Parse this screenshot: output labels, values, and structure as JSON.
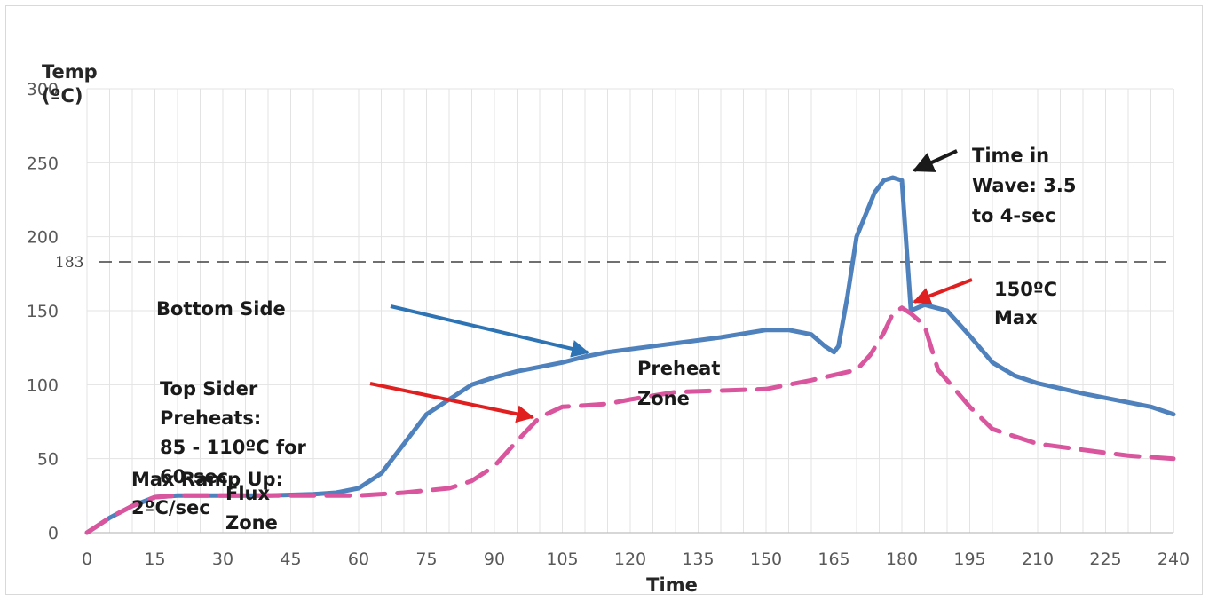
{
  "chart_data": {
    "type": "line",
    "title": "",
    "xlabel": "Time",
    "ylabel": "Temp (ºC)",
    "xlim": [
      0,
      240
    ],
    "ylim": [
      0,
      300
    ],
    "x_ticks": [
      0,
      15,
      30,
      45,
      60,
      75,
      90,
      105,
      120,
      135,
      150,
      165,
      180,
      195,
      210,
      225,
      240
    ],
    "y_ticks": [
      0,
      50,
      100,
      150,
      200,
      250,
      300
    ],
    "grid": true,
    "reference_line": {
      "y": 183,
      "label": "183"
    },
    "series": [
      {
        "color": "#4f81bd",
        "style": "solid",
        "points": [
          [
            0,
            0
          ],
          [
            5,
            10
          ],
          [
            10,
            18
          ],
          [
            15,
            24
          ],
          [
            20,
            25
          ],
          [
            30,
            25
          ],
          [
            40,
            25
          ],
          [
            50,
            26
          ],
          [
            55,
            27
          ],
          [
            60,
            30
          ],
          [
            65,
            40
          ],
          [
            70,
            60
          ],
          [
            75,
            80
          ],
          [
            80,
            90
          ],
          [
            85,
            100
          ],
          [
            90,
            105
          ],
          [
            95,
            109
          ],
          [
            100,
            112
          ],
          [
            105,
            115
          ],
          [
            110,
            119
          ],
          [
            115,
            122
          ],
          [
            120,
            124
          ],
          [
            130,
            128
          ],
          [
            140,
            132
          ],
          [
            150,
            137
          ],
          [
            155,
            137
          ],
          [
            160,
            134
          ],
          [
            163,
            126
          ],
          [
            165,
            122
          ],
          [
            166,
            126
          ],
          [
            168,
            160
          ],
          [
            170,
            200
          ],
          [
            172,
            215
          ],
          [
            174,
            230
          ],
          [
            176,
            238
          ],
          [
            178,
            240
          ],
          [
            180,
            238
          ],
          [
            182,
            150
          ],
          [
            185,
            154
          ],
          [
            190,
            150
          ],
          [
            195,
            133
          ],
          [
            200,
            115
          ],
          [
            205,
            106
          ],
          [
            210,
            101
          ],
          [
            220,
            94
          ],
          [
            230,
            88
          ],
          [
            235,
            85
          ],
          [
            240,
            80
          ]
        ]
      },
      {
        "color": "#d9559d",
        "style": "dashed",
        "points": [
          [
            0,
            0
          ],
          [
            5,
            10
          ],
          [
            10,
            18
          ],
          [
            15,
            24
          ],
          [
            20,
            25
          ],
          [
            30,
            25
          ],
          [
            40,
            25
          ],
          [
            50,
            25
          ],
          [
            60,
            25
          ],
          [
            70,
            27
          ],
          [
            80,
            30
          ],
          [
            85,
            35
          ],
          [
            90,
            45
          ],
          [
            95,
            62
          ],
          [
            100,
            78
          ],
          [
            105,
            85
          ],
          [
            110,
            86
          ],
          [
            115,
            87
          ],
          [
            120,
            90
          ],
          [
            130,
            95
          ],
          [
            140,
            96
          ],
          [
            150,
            97
          ],
          [
            160,
            103
          ],
          [
            170,
            110
          ],
          [
            173,
            120
          ],
          [
            176,
            135
          ],
          [
            178,
            148
          ],
          [
            180,
            152
          ],
          [
            182,
            148
          ],
          [
            185,
            140
          ],
          [
            188,
            110
          ],
          [
            190,
            103
          ],
          [
            195,
            85
          ],
          [
            200,
            70
          ],
          [
            210,
            60
          ],
          [
            220,
            56
          ],
          [
            230,
            52
          ],
          [
            240,
            50
          ]
        ]
      }
    ],
    "annotations": [
      {
        "lines": [
          "Time in",
          "Wave: 3.5",
          "to 4-sec"
        ]
      },
      {
        "lines": [
          "150ºC",
          "Max"
        ]
      },
      {
        "lines": [
          "Bottom Side"
        ]
      },
      {
        "lines": [
          "Preheat",
          "Zone"
        ]
      },
      {
        "lines": [
          "Top Sider",
          "Preheats:",
          "85 - 110ºC for",
          "60-sec"
        ]
      },
      {
        "lines": [
          "Max Ramp Up:",
          "2ºC/sec"
        ]
      },
      {
        "lines": [
          "Flux",
          "Zone"
        ]
      }
    ],
    "arrow_colors": {
      "black": "#1a1a1a",
      "blue": "#2e74b5",
      "red": "#e02020"
    }
  }
}
